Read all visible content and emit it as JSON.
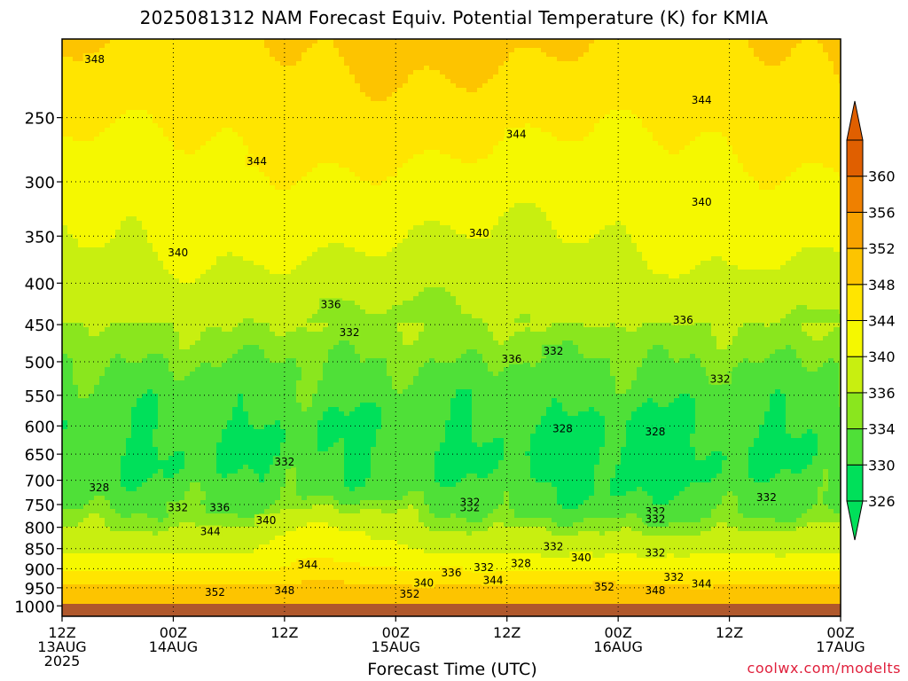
{
  "chart_data": {
    "type": "heatmap",
    "title": "2025081312 NAM Forecast Equiv. Potential Temperature (K) for KMIA",
    "xlabel": "Forecast Time (UTC)",
    "ylabel": "",
    "x_ticks": [
      {
        "hour": 0,
        "lines": [
          "12Z",
          "13AUG",
          "2025"
        ]
      },
      {
        "hour": 12,
        "lines": [
          "00Z",
          "14AUG"
        ]
      },
      {
        "hour": 24,
        "lines": [
          "12Z"
        ]
      },
      {
        "hour": 36,
        "lines": [
          "00Z",
          "15AUG"
        ]
      },
      {
        "hour": 48,
        "lines": [
          "12Z"
        ]
      },
      {
        "hour": 60,
        "lines": [
          "00Z",
          "16AUG"
        ]
      },
      {
        "hour": 72,
        "lines": [
          "12Z"
        ]
      },
      {
        "hour": 84,
        "lines": [
          "00Z",
          "17AUG"
        ]
      }
    ],
    "xlim_hours": [
      0,
      84
    ],
    "y_ticks": [
      250,
      300,
      350,
      400,
      450,
      500,
      550,
      600,
      650,
      700,
      750,
      800,
      850,
      900,
      950,
      1000
    ],
    "ylim_hpa": [
      200,
      1030
    ],
    "y_scale": "log",
    "grid": true,
    "colorbar": {
      "levels": [
        326,
        330,
        334,
        336,
        340,
        344,
        348,
        352,
        356,
        360
      ],
      "colors": [
        "#00e05a",
        "#4fe038",
        "#8ae61e",
        "#c8ef10",
        "#f5f800",
        "#ffe500",
        "#fdc400",
        "#f8a300",
        "#ef8000",
        "#e05f00"
      ],
      "below_color": "#00e05a",
      "above_color": "#e05f00"
    },
    "field_profile": [
      {
        "p": 200,
        "theta_e": 348.5
      },
      {
        "p": 250,
        "theta_e": 345.5
      },
      {
        "p": 300,
        "theta_e": 342.5
      },
      {
        "p": 350,
        "theta_e": 340.5
      },
      {
        "p": 400,
        "theta_e": 338
      },
      {
        "p": 450,
        "theta_e": 336
      },
      {
        "p": 500,
        "theta_e": 334
      },
      {
        "p": 550,
        "theta_e": 332
      },
      {
        "p": 600,
        "theta_e": 330.5
      },
      {
        "p": 650,
        "theta_e": 330
      },
      {
        "p": 700,
        "theta_e": 331
      },
      {
        "p": 750,
        "theta_e": 333
      },
      {
        "p": 800,
        "theta_e": 336
      },
      {
        "p": 850,
        "theta_e": 339
      },
      {
        "p": 900,
        "theta_e": 343
      },
      {
        "p": 950,
        "theta_e": 349
      },
      {
        "p": 1000,
        "theta_e": 352
      }
    ],
    "contour_labels": [
      {
        "text": "348",
        "hour": 3.5,
        "p": 212
      },
      {
        "text": "344",
        "hour": 21,
        "p": 283
      },
      {
        "text": "344",
        "hour": 49,
        "p": 262
      },
      {
        "text": "344",
        "hour": 69,
        "p": 238
      },
      {
        "text": "340",
        "hour": 12.5,
        "p": 367
      },
      {
        "text": "340",
        "hour": 45,
        "p": 347
      },
      {
        "text": "340",
        "hour": 69,
        "p": 318
      },
      {
        "text": "336",
        "hour": 29,
        "p": 425
      },
      {
        "text": "336",
        "hour": 67,
        "p": 444
      },
      {
        "text": "336",
        "hour": 48.5,
        "p": 496
      },
      {
        "text": "332",
        "hour": 31,
        "p": 460
      },
      {
        "text": "332",
        "hour": 53,
        "p": 485
      },
      {
        "text": "332",
        "hour": 71,
        "p": 525
      },
      {
        "text": "328",
        "hour": 54,
        "p": 605
      },
      {
        "text": "328",
        "hour": 64,
        "p": 610
      },
      {
        "text": "328",
        "hour": 4,
        "p": 715
      },
      {
        "text": "332",
        "hour": 24,
        "p": 665
      },
      {
        "text": "332",
        "hour": 44,
        "p": 757
      },
      {
        "text": "332",
        "hour": 44,
        "p": 745
      },
      {
        "text": "332",
        "hour": 12.5,
        "p": 757
      },
      {
        "text": "336",
        "hour": 17,
        "p": 757
      },
      {
        "text": "340",
        "hour": 22,
        "p": 785
      },
      {
        "text": "344",
        "hour": 16,
        "p": 810
      },
      {
        "text": "344",
        "hour": 26.5,
        "p": 890
      },
      {
        "text": "332",
        "hour": 64,
        "p": 765
      },
      {
        "text": "332",
        "hour": 64,
        "p": 782
      },
      {
        "text": "332",
        "hour": 76,
        "p": 735
      },
      {
        "text": "332",
        "hour": 53,
        "p": 845
      },
      {
        "text": "332",
        "hour": 64,
        "p": 860
      },
      {
        "text": "332",
        "hour": 45.5,
        "p": 897
      },
      {
        "text": "328",
        "hour": 49.5,
        "p": 887
      },
      {
        "text": "340",
        "hour": 56,
        "p": 872
      },
      {
        "text": "336",
        "hour": 42,
        "p": 910
      },
      {
        "text": "340",
        "hour": 39,
        "p": 937
      },
      {
        "text": "344",
        "hour": 46.5,
        "p": 930
      },
      {
        "text": "332",
        "hour": 66,
        "p": 922
      },
      {
        "text": "344",
        "hour": 69,
        "p": 940
      },
      {
        "text": "352",
        "hour": 16.5,
        "p": 962
      },
      {
        "text": "348",
        "hour": 24,
        "p": 957
      },
      {
        "text": "352",
        "hour": 37.5,
        "p": 967
      },
      {
        "text": "352",
        "hour": 58.5,
        "p": 948
      },
      {
        "text": "348",
        "hour": 64,
        "p": 958
      }
    ]
  },
  "credit": "coolwx.com/modelts"
}
